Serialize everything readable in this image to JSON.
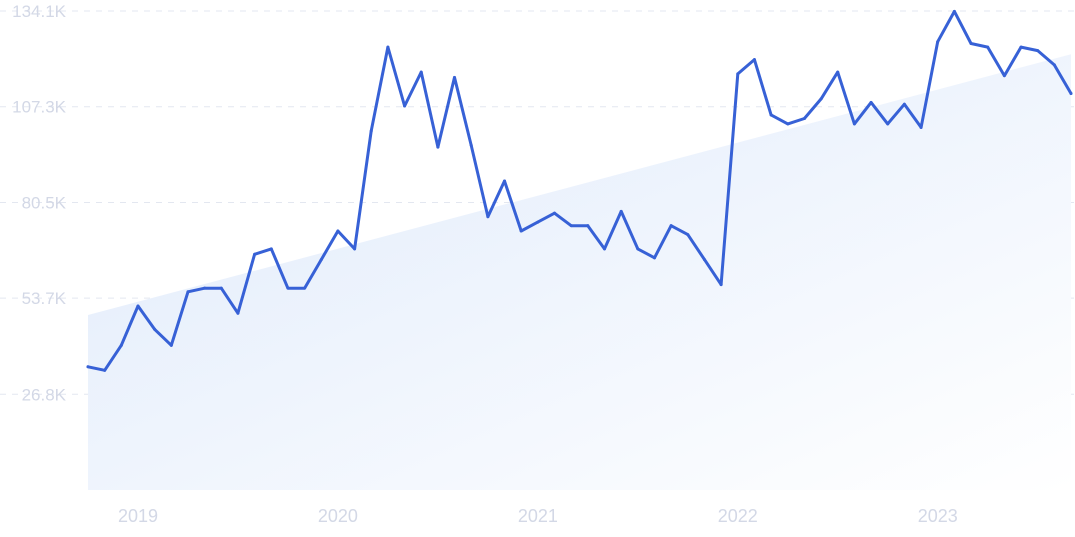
{
  "chart_data": {
    "type": "line",
    "title": "",
    "xlabel": "",
    "ylabel": "",
    "x_tick_labels": [
      "2019",
      "2020",
      "2021",
      "2022",
      "2023"
    ],
    "y_tick_labels": [
      "26.8K",
      "53.7K",
      "80.5K",
      "107.3K",
      "134.1K"
    ],
    "y_ticks": [
      26800,
      53700,
      80500,
      107300,
      134100
    ],
    "x_ticks": [
      "2019-01",
      "2020-01",
      "2021-01",
      "2022-01",
      "2023-01"
    ],
    "xlim": [
      "2018-10",
      "2023-09"
    ],
    "ylim": [
      0,
      134100
    ],
    "grid": true,
    "legend": "none",
    "colors": {
      "line": "#3761d6",
      "trend_fill_left": "#dfeafb",
      "trend_fill_right": "#ffffff",
      "grid": "#e3e7f0",
      "tick_text": "#d3d8e6"
    },
    "trend": {
      "start": [
        "2018-10",
        49000
      ],
      "end": [
        "2023-09",
        122000
      ]
    },
    "series": [
      {
        "x": [
          "2018-10",
          "2018-11",
          "2018-12",
          "2019-01",
          "2019-02",
          "2019-03",
          "2019-04",
          "2019-05",
          "2019-06",
          "2019-07",
          "2019-08",
          "2019-09",
          "2019-10",
          "2019-11",
          "2019-12",
          "2020-01",
          "2020-02",
          "2020-03",
          "2020-04",
          "2020-05",
          "2020-06",
          "2020-07",
          "2020-08",
          "2020-09",
          "2020-10",
          "2020-11",
          "2020-12",
          "2021-01",
          "2021-02",
          "2021-03",
          "2021-04",
          "2021-05",
          "2021-06",
          "2021-07",
          "2021-08",
          "2021-09",
          "2021-10",
          "2021-11",
          "2021-12",
          "2022-01",
          "2022-02",
          "2022-03",
          "2022-04",
          "2022-05",
          "2022-06",
          "2022-07",
          "2022-08",
          "2022-09",
          "2022-10",
          "2022-11",
          "2022-12",
          "2023-01",
          "2023-02",
          "2023-03",
          "2023-04",
          "2023-05",
          "2023-06",
          "2023-07",
          "2023-08",
          "2023-09"
        ],
        "values": [
          34500,
          33500,
          40500,
          51500,
          45000,
          40500,
          55500,
          56500,
          56500,
          49500,
          66000,
          67500,
          56500,
          56500,
          64500,
          72500,
          67500,
          100500,
          124000,
          107500,
          117000,
          96000,
          115500,
          96500,
          76500,
          86500,
          72500,
          75000,
          77500,
          74000,
          74000,
          67500,
          78000,
          67500,
          65000,
          74000,
          71500,
          64500,
          57500,
          116500,
          120500,
          105000,
          102500,
          104000,
          109500,
          117000,
          102500,
          108500,
          102500,
          108000,
          101500,
          125500,
          134000,
          125000,
          124000,
          116000,
          124000,
          123000,
          119000,
          111000
        ]
      }
    ]
  }
}
